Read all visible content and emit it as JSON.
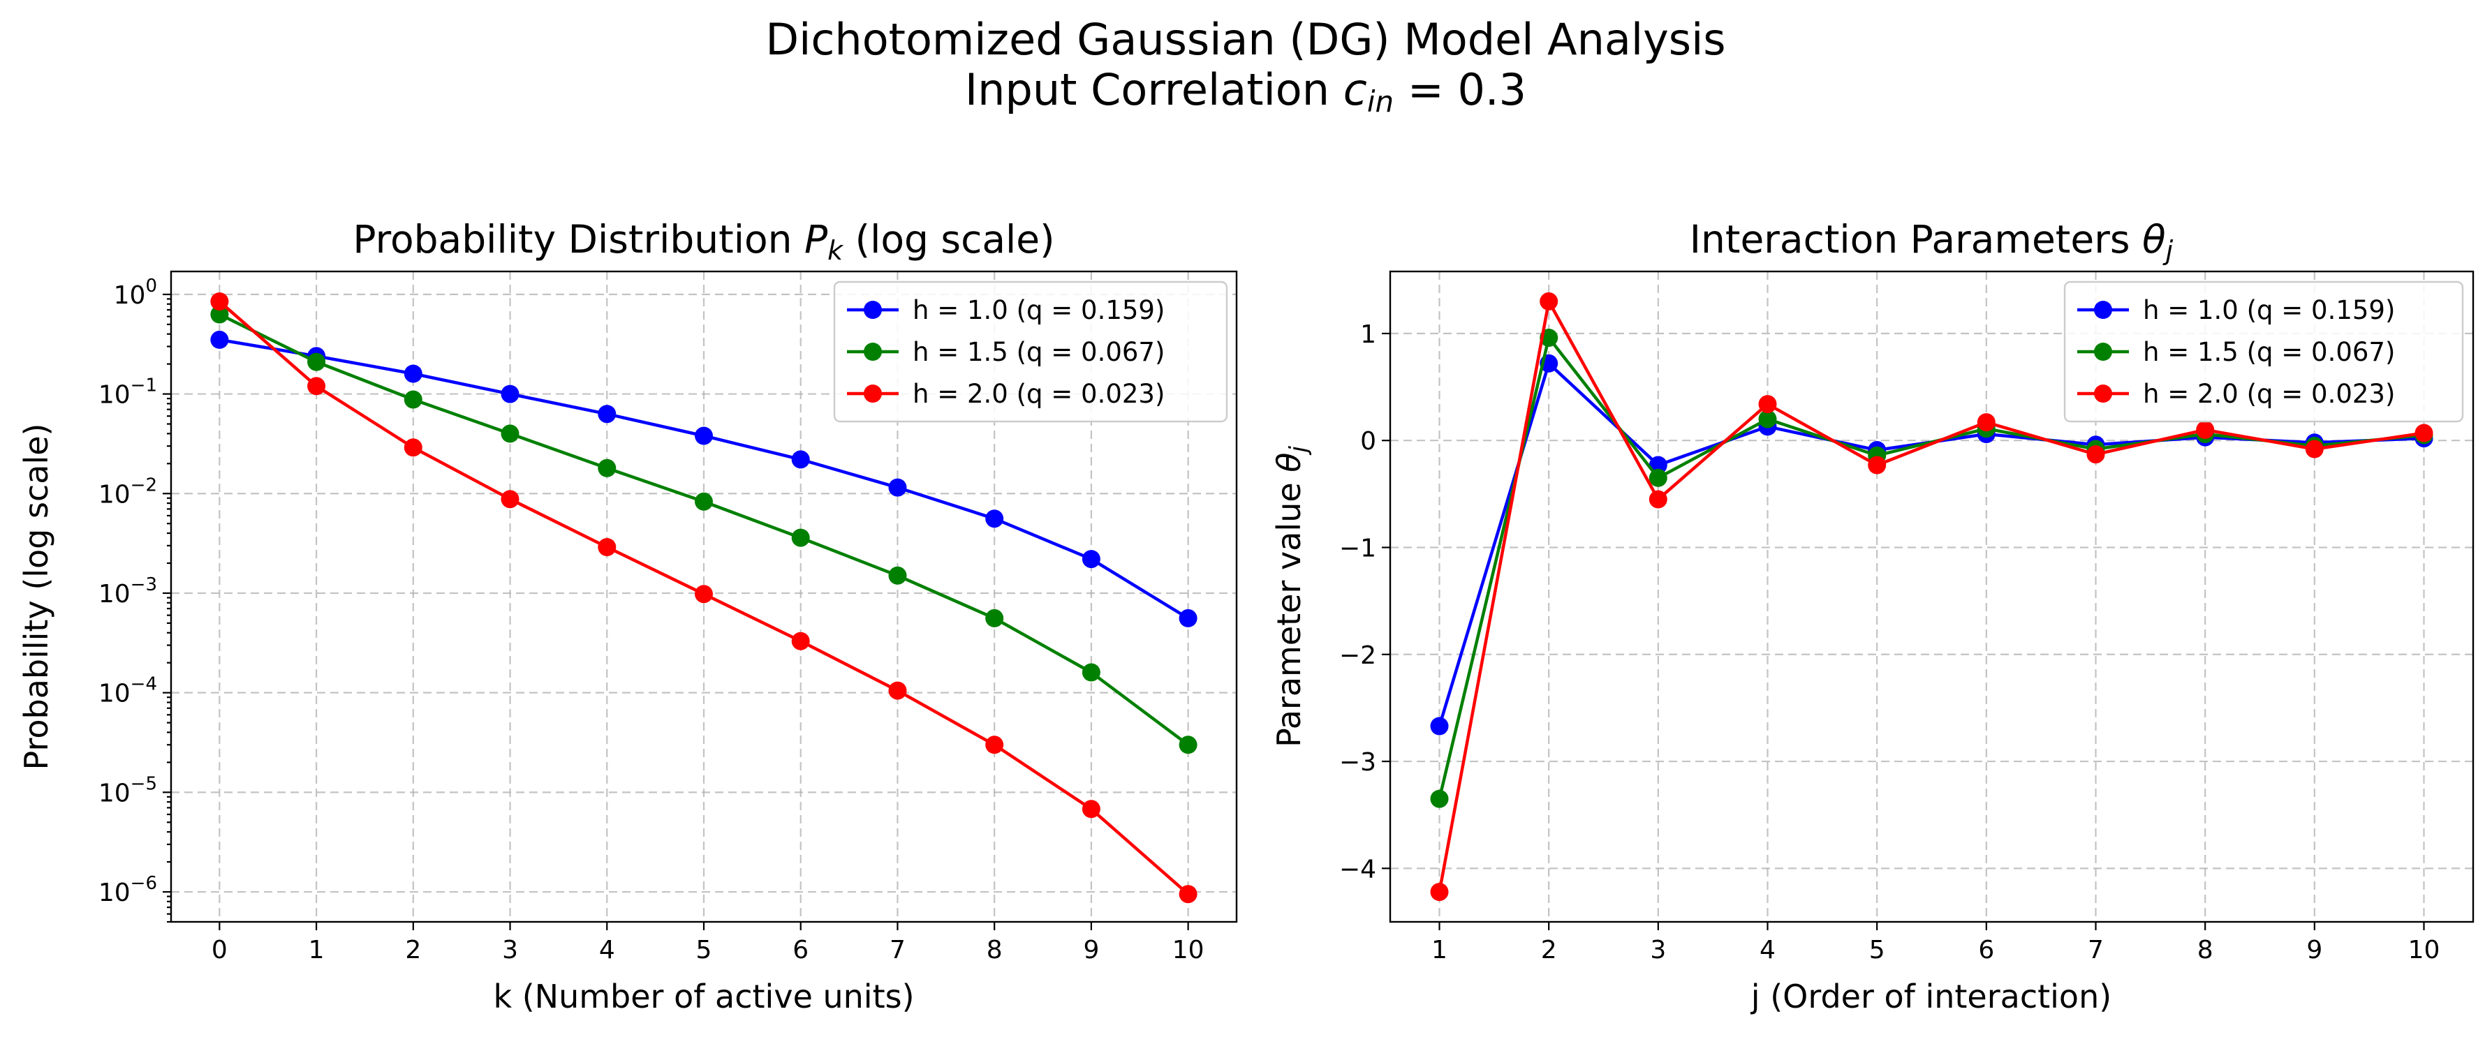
{
  "figure": {
    "suptitle_line1": "Dichotomized Gaussian (DG) Model Analysis",
    "suptitle_line2_prefix": "Input Correlation ",
    "suptitle_line2_var": "c",
    "suptitle_line2_sub": "in",
    "suptitle_line2_suffix": " = 0.3"
  },
  "chart_data": [
    {
      "type": "line",
      "title_prefix": "Probability Distribution ",
      "title_var": "P",
      "title_sub": "k",
      "title_suffix": " (log scale)",
      "xlabel": "k (Number of active units)",
      "ylabel": "Probability (log scale)",
      "yscale": "log",
      "x": [
        0,
        1,
        2,
        3,
        4,
        5,
        6,
        7,
        8,
        9,
        10
      ],
      "xlim": [
        -0.5,
        10.5
      ],
      "ylim": [
        5e-07,
        1.7
      ],
      "x_ticks": [
        0,
        1,
        2,
        3,
        4,
        5,
        6,
        7,
        8,
        9,
        10
      ],
      "y_ticks": [
        {
          "exp": 0,
          "base": "10",
          "power": "0"
        },
        {
          "exp": -1,
          "base": "10",
          "power": "−1"
        },
        {
          "exp": -2,
          "base": "10",
          "power": "−2"
        },
        {
          "exp": -3,
          "base": "10",
          "power": "−3"
        },
        {
          "exp": -4,
          "base": "10",
          "power": "−4"
        },
        {
          "exp": -5,
          "base": "10",
          "power": "−5"
        },
        {
          "exp": -6,
          "base": "10",
          "power": "−6"
        }
      ],
      "grid": true,
      "legend_position": "top-right",
      "series": [
        {
          "name": "h = 1.0 (q = 0.159)",
          "color": "#0000ff",
          "values": [
            0.35,
            0.24,
            0.16,
            0.1,
            0.063,
            0.038,
            0.022,
            0.0115,
            0.0056,
            0.0022,
            0.00056
          ]
        },
        {
          "name": "h = 1.5 (q = 0.067)",
          "color": "#008000",
          "values": [
            0.63,
            0.21,
            0.088,
            0.04,
            0.018,
            0.0083,
            0.0036,
            0.0015,
            0.00056,
            0.00016,
            3e-05
          ]
        },
        {
          "name": "h = 2.0 (q = 0.023)",
          "color": "#ff0000",
          "values": [
            0.85,
            0.12,
            0.029,
            0.0088,
            0.0029,
            0.00098,
            0.00033,
            0.000105,
            3e-05,
            6.8e-06,
            9.5e-07
          ]
        }
      ]
    },
    {
      "type": "line",
      "title_prefix": "Interaction Parameters ",
      "title_var": "θ",
      "title_sub": "j",
      "title_suffix": "",
      "xlabel": "j (Order of interaction)",
      "ylabel_prefix": "Parameter value ",
      "ylabel_var": "θ",
      "ylabel_sub": "j",
      "yscale": "linear",
      "x": [
        1,
        2,
        3,
        4,
        5,
        6,
        7,
        8,
        9,
        10
      ],
      "xlim": [
        0.55,
        10.45
      ],
      "ylim": [
        -4.5,
        1.58
      ],
      "x_ticks": [
        1,
        2,
        3,
        4,
        5,
        6,
        7,
        8,
        9,
        10
      ],
      "y_ticks": [
        1,
        0,
        -1,
        -2,
        -3,
        -4
      ],
      "y_tick_labels": [
        "1",
        "0",
        "−1",
        "−2",
        "−3",
        "−4"
      ],
      "grid": true,
      "legend_position": "top-right",
      "series": [
        {
          "name": "h = 1.0 (q = 0.159)",
          "color": "#0000ff",
          "values": [
            -2.67,
            0.72,
            -0.23,
            0.13,
            -0.09,
            0.06,
            -0.04,
            0.03,
            -0.02,
            0.02
          ]
        },
        {
          "name": "h = 1.5 (q = 0.067)",
          "color": "#008000",
          "values": [
            -3.35,
            0.96,
            -0.35,
            0.2,
            -0.14,
            0.11,
            -0.08,
            0.06,
            -0.05,
            0.05
          ]
        },
        {
          "name": "h = 2.0 (q = 0.023)",
          "color": "#ff0000",
          "values": [
            -4.22,
            1.3,
            -0.55,
            0.34,
            -0.23,
            0.17,
            -0.13,
            0.1,
            -0.08,
            0.07
          ]
        }
      ]
    }
  ]
}
